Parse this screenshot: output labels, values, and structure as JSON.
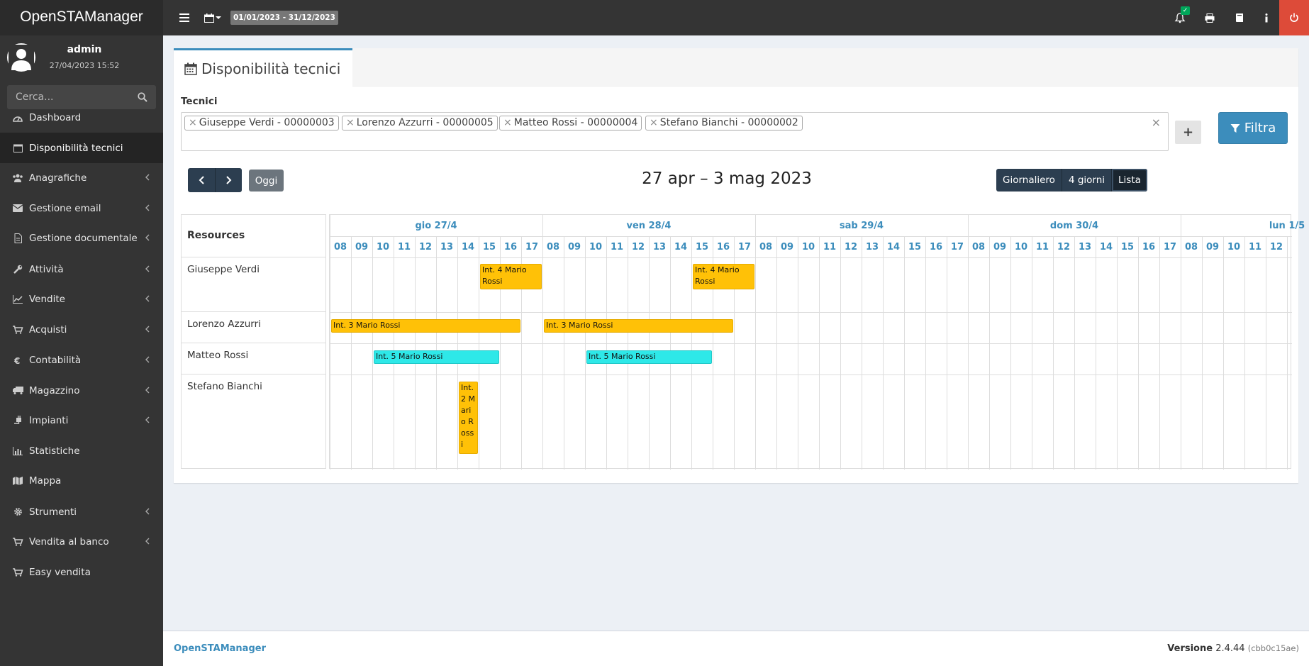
{
  "app": {
    "title": "OpenSTAManager"
  },
  "topbar": {
    "date_range": "01/01/2023 - 31/12/2023",
    "notification_badge": "✓"
  },
  "user": {
    "name": "admin",
    "datetime": "27/04/2023 15:52"
  },
  "search": {
    "placeholder": "Cerca..."
  },
  "sidebar": {
    "items": [
      {
        "label": "Dashboard",
        "icon": "dashboard-icon",
        "has_children": false,
        "active": false
      },
      {
        "label": "Disponibilità tecnici",
        "icon": "calendar-icon",
        "has_children": false,
        "active": true
      },
      {
        "label": "Anagrafiche",
        "icon": "users-icon",
        "has_children": true,
        "active": false
      },
      {
        "label": "Gestione email",
        "icon": "envelope-icon",
        "has_children": true,
        "active": false
      },
      {
        "label": "Gestione documentale",
        "icon": "file-icon",
        "has_children": true,
        "active": false
      },
      {
        "label": "Attività",
        "icon": "wrench-icon",
        "has_children": true,
        "active": false
      },
      {
        "label": "Vendite",
        "icon": "line-chart-icon",
        "has_children": true,
        "active": false
      },
      {
        "label": "Acquisti",
        "icon": "cart-icon",
        "has_children": true,
        "active": false
      },
      {
        "label": "Contabilità",
        "icon": "euro-icon",
        "has_children": true,
        "active": false
      },
      {
        "label": "Magazzino",
        "icon": "truck-icon",
        "has_children": true,
        "active": false
      },
      {
        "label": "Impianti",
        "icon": "plug-icon",
        "has_children": true,
        "active": false
      },
      {
        "label": "Statistiche",
        "icon": "bar-chart-icon",
        "has_children": false,
        "active": false
      },
      {
        "label": "Mappa",
        "icon": "map-icon",
        "has_children": false,
        "active": false
      },
      {
        "label": "Strumenti",
        "icon": "cog-icon",
        "has_children": true,
        "active": false
      },
      {
        "label": "Vendita al banco",
        "icon": "cart-icon",
        "has_children": true,
        "active": false
      },
      {
        "label": "Easy vendita",
        "icon": "cart-icon",
        "has_children": false,
        "active": false
      }
    ]
  },
  "page": {
    "title": "Disponibilità tecnici",
    "tecnici_label": "Tecnici",
    "selected_tecnici": [
      "Giuseppe Verdi - 00000003",
      "Lorenzo Azzurri - 00000005",
      "Matteo Rossi - 00000004",
      "Stefano Bianchi - 00000002"
    ],
    "filter_button": "Filtra",
    "today_button": "Oggi",
    "calendar_title": "27 apr – 3 mag 2023",
    "views": [
      {
        "label": "Giornaliero",
        "active": false
      },
      {
        "label": "4 giorni",
        "active": false
      },
      {
        "label": "Lista",
        "active": true
      }
    ]
  },
  "timeline": {
    "resources_header": "Resources",
    "days": [
      "gio 27/4",
      "ven 28/4",
      "sab 29/4",
      "dom 30/4",
      "lun 1/5"
    ],
    "hours": [
      "08",
      "09",
      "10",
      "11",
      "12",
      "13",
      "14",
      "15",
      "16",
      "17"
    ],
    "resources": [
      "Giuseppe Verdi",
      "Lorenzo Azzurri",
      "Matteo Rossi",
      "Stefano Bianchi"
    ],
    "events": [
      {
        "resource": 0,
        "day": 0,
        "start": 15.0,
        "end": 18.0,
        "title": "Int. 4 Mario Rossi",
        "color": "yellow"
      },
      {
        "resource": 0,
        "day": 1,
        "start": 15.0,
        "end": 18.0,
        "title": "Int. 4 Mario Rossi",
        "color": "yellow"
      },
      {
        "resource": 1,
        "day": 0,
        "start": 8.0,
        "end": 17.0,
        "title": "Int. 3 Mario Rossi",
        "color": "yellow"
      },
      {
        "resource": 1,
        "day": 1,
        "start": 8.0,
        "end": 17.0,
        "title": "Int. 3 Mario Rossi",
        "color": "yellow"
      },
      {
        "resource": 2,
        "day": 0,
        "start": 10.0,
        "end": 16.0,
        "title": "Int. 5 Mario Rossi",
        "color": "cyan"
      },
      {
        "resource": 2,
        "day": 1,
        "start": 10.0,
        "end": 16.0,
        "title": "Int. 5 Mario Rossi",
        "color": "cyan"
      },
      {
        "resource": 3,
        "day": 0,
        "start": 14.0,
        "end": 15.0,
        "title": "Int. 2 Mario Rossi",
        "color": "yellow"
      }
    ]
  },
  "footer": {
    "brand": "OpenSTAManager",
    "version_label": "Versione",
    "version": "2.4.44",
    "hash": "(cbb0c15ae)"
  },
  "colors": {
    "accent": "#3c8dbc",
    "sidebar_bg": "#343434",
    "event_yellow": "#ffc107",
    "event_cyan": "#2ee8e8",
    "logout_red": "#dd4b39"
  }
}
